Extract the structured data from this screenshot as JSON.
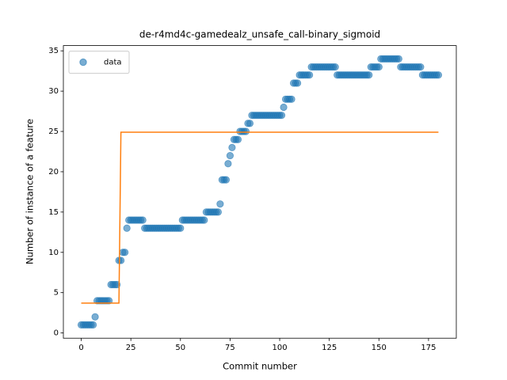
{
  "chart_data": {
    "type": "scatter",
    "title": "de-r4md4c-gamedealz_unsafe_call-binary_sigmoid",
    "x_label": "Commit number",
    "y_label": "Number of instance of a feature",
    "xlim": [
      -9,
      189
    ],
    "ylim": [
      -0.65,
      35.65
    ],
    "xticks": [
      0,
      25,
      50,
      75,
      100,
      125,
      150,
      175
    ],
    "yticks": [
      0,
      5,
      10,
      15,
      20,
      25,
      30,
      35
    ],
    "legend": "upper left",
    "series": [
      {
        "name": "data",
        "type": "scatter",
        "color": "#1f77b4",
        "alpha": 0.6,
        "x": [
          0,
          1,
          2,
          3,
          4,
          5,
          6,
          7,
          8,
          9,
          10,
          11,
          12,
          13,
          14,
          15,
          16,
          17,
          18,
          19,
          20,
          21,
          22,
          23,
          24,
          25,
          26,
          27,
          28,
          29,
          30,
          31,
          32,
          33,
          34,
          35,
          36,
          37,
          38,
          39,
          40,
          41,
          42,
          43,
          44,
          45,
          46,
          47,
          48,
          49,
          50,
          51,
          52,
          53,
          54,
          55,
          56,
          57,
          58,
          59,
          60,
          61,
          62,
          63,
          64,
          65,
          66,
          67,
          68,
          69,
          70,
          71,
          72,
          73,
          74,
          75,
          76,
          77,
          78,
          79,
          80,
          81,
          82,
          83,
          84,
          85,
          86,
          87,
          88,
          89,
          90,
          91,
          92,
          93,
          94,
          95,
          96,
          97,
          98,
          99,
          100,
          101,
          102,
          103,
          104,
          105,
          106,
          107,
          108,
          109,
          110,
          111,
          112,
          113,
          114,
          115,
          116,
          117,
          118,
          119,
          120,
          121,
          122,
          123,
          124,
          125,
          126,
          127,
          128,
          129,
          130,
          131,
          132,
          133,
          134,
          135,
          136,
          137,
          138,
          139,
          140,
          141,
          142,
          143,
          144,
          145,
          146,
          147,
          148,
          149,
          150,
          151,
          152,
          153,
          154,
          155,
          156,
          157,
          158,
          159,
          160,
          161,
          162,
          163,
          164,
          165,
          166,
          167,
          168,
          169,
          170,
          171,
          172,
          173,
          174,
          175,
          176,
          177,
          178,
          179,
          180
        ],
        "values": [
          1,
          1,
          1,
          1,
          1,
          1,
          1,
          2,
          4,
          4,
          4,
          4,
          4,
          4,
          4,
          6,
          6,
          6,
          6,
          9,
          9,
          10,
          10,
          13,
          14,
          14,
          14,
          14,
          14,
          14,
          14,
          14,
          13,
          13,
          13,
          13,
          13,
          13,
          13,
          13,
          13,
          13,
          13,
          13,
          13,
          13,
          13,
          13,
          13,
          13,
          13,
          14,
          14,
          14,
          14,
          14,
          14,
          14,
          14,
          14,
          14,
          14,
          14,
          15,
          15,
          15,
          15,
          15,
          15,
          15,
          16,
          19,
          19,
          19,
          21,
          22,
          23,
          24,
          24,
          24,
          25,
          25,
          25,
          25,
          26,
          26,
          27,
          27,
          27,
          27,
          27,
          27,
          27,
          27,
          27,
          27,
          27,
          27,
          27,
          27,
          27,
          27,
          28,
          29,
          29,
          29,
          29,
          31,
          31,
          31,
          32,
          32,
          32,
          32,
          32,
          32,
          33,
          33,
          33,
          33,
          33,
          33,
          33,
          33,
          33,
          33,
          33,
          33,
          33,
          32,
          32,
          32,
          32,
          32,
          32,
          32,
          32,
          32,
          32,
          32,
          32,
          32,
          32,
          32,
          32,
          32,
          33,
          33,
          33,
          33,
          33,
          34,
          34,
          34,
          34,
          34,
          34,
          34,
          34,
          34,
          34,
          33,
          33,
          33,
          33,
          33,
          33,
          33,
          33,
          33,
          33,
          33,
          32,
          32,
          32,
          32,
          32,
          32,
          32,
          32,
          32
        ]
      },
      {
        "type": "line",
        "color": "#ff7f0e",
        "x": [
          0,
          19,
          20,
          180
        ],
        "values": [
          3.7,
          3.7,
          24.9,
          24.9
        ]
      }
    ]
  }
}
